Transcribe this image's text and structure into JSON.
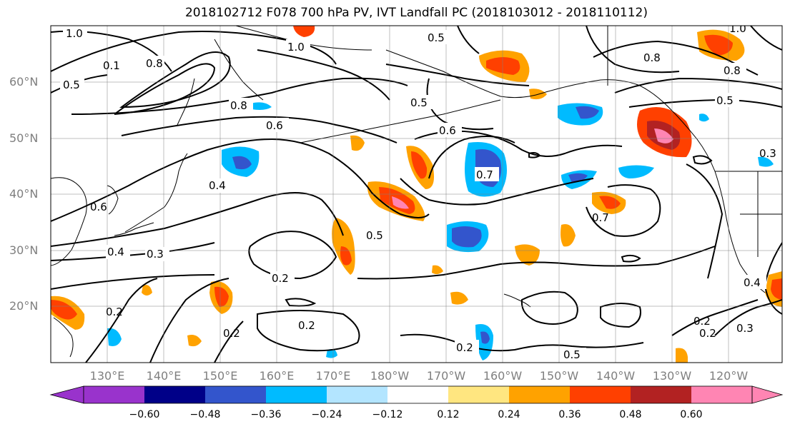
{
  "title": "2018102712 F078 700 hPa PV, IVT Landfall PC (2018103012 - 2018110112)",
  "lat_labels": [
    "60°N",
    "50°N",
    "40°N",
    "30°N",
    "20°N"
  ],
  "lon_labels": [
    "130°E",
    "140°E",
    "150°E",
    "160°E",
    "170°E",
    "180°W",
    "170°W",
    "160°W",
    "150°W",
    "140°W",
    "130°W",
    "120°W"
  ],
  "colorbar": {
    "ticks": [
      "−0.60",
      "−0.48",
      "−0.36",
      "−0.24",
      "−0.12",
      "0.12",
      "0.24",
      "0.36",
      "0.48",
      "0.60"
    ],
    "colors": [
      "#9933cc",
      "#000088",
      "#3355cc",
      "#00bbff",
      "#b3e5ff",
      "#ffffff",
      "#ffe680",
      "#ffa200",
      "#ff4000",
      "#b22222",
      "#ff85b3"
    ]
  },
  "contour_labels": [
    "1.0",
    "0.8",
    "0.5",
    "0.7",
    "0.6",
    "0.4",
    "0.3",
    "0.2",
    "0.8",
    "0.6",
    "0.5",
    "0.7",
    "0.5",
    "0.2",
    "0.2",
    "0.2",
    "0.5",
    "0.8",
    "1.0",
    "0.5",
    "0.2",
    "0.4",
    "0.2",
    "0.3",
    "0.5",
    "0.4",
    "0.3",
    "0.2",
    "0.8",
    "1.0",
    "0.6",
    "0.1"
  ]
}
